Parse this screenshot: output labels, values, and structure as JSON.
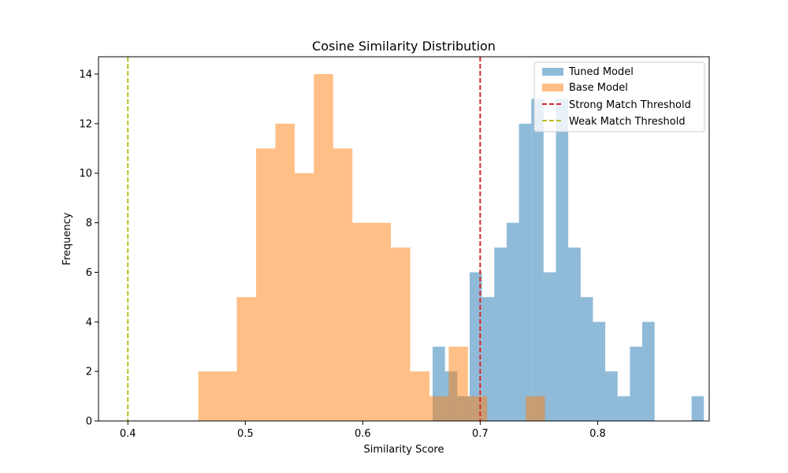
{
  "chart_data": {
    "type": "histogram",
    "title": "Cosine Similarity Distribution",
    "xlabel": "Similarity Score",
    "ylabel": "Frequency",
    "xlim": [
      0.375,
      0.895
    ],
    "ylim": [
      0,
      14.7
    ],
    "x_ticks": [
      0.4,
      0.5,
      0.6,
      0.7,
      0.8
    ],
    "y_ticks": [
      0,
      2,
      4,
      6,
      8,
      10,
      12,
      14
    ],
    "grid": false,
    "legend_position": "top-right",
    "series": [
      {
        "name": "Tuned Model",
        "color": "#1f77b4",
        "opacity": 0.5,
        "bin_start": 0.6595,
        "bin_width": 0.0105,
        "counts": [
          3,
          2,
          1,
          6,
          5,
          7,
          8,
          12,
          13,
          6,
          13,
          7,
          5,
          4,
          2,
          1,
          3,
          4,
          0,
          0,
          0,
          1
        ]
      },
      {
        "name": "Base Model",
        "color": "#ff7f0e",
        "opacity": 0.5,
        "bin_start": 0.46,
        "bin_width": 0.0164,
        "counts": [
          2,
          2,
          5,
          11,
          12,
          10,
          14,
          11,
          8,
          8,
          7,
          2,
          1,
          3,
          1,
          0,
          0,
          1
        ]
      }
    ],
    "thresholds": [
      {
        "name": "Strong Match Threshold",
        "x": 0.7,
        "color": "#d62728",
        "style": "dashed"
      },
      {
        "name": "Weak Match Threshold",
        "x": 0.4,
        "color": "#bcbd22",
        "style": "dashed"
      }
    ]
  }
}
